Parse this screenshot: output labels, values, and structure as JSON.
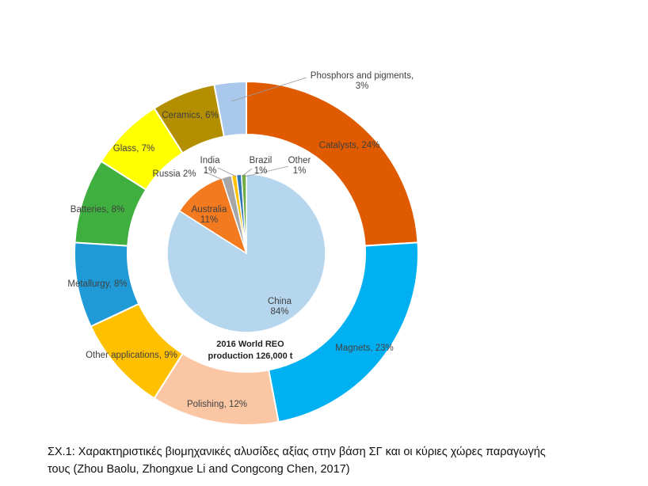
{
  "chart_data": [
    {
      "type": "pie",
      "variant": "donut",
      "ring": "outer",
      "slices": [
        {
          "label": "Catalysts, 24%",
          "value": 24,
          "color": "#E05A00"
        },
        {
          "label": "Magnets, 23%",
          "value": 23,
          "color": "#00B0F0"
        },
        {
          "label": "Polishing, 12%",
          "value": 12,
          "color": "#FAC6A4"
        },
        {
          "label": "Other applications, 9%",
          "value": 9,
          "color": "#FFC000"
        },
        {
          "label": "Metallurgy, 8%",
          "value": 8,
          "color": "#1F9AD6"
        },
        {
          "label": "Batteries, 8%",
          "value": 8,
          "color": "#3FAF3F"
        },
        {
          "label": "Glass, 7%",
          "value": 7,
          "color": "#FFFF00"
        },
        {
          "label": "Ceramics, 6%",
          "value": 6,
          "color": "#B38F00"
        },
        {
          "label": "Phosphors and pigments, 3%",
          "value": 3,
          "color": "#A9C8EC",
          "label_lines": [
            "Phosphors and pigments,",
            "3%"
          ]
        }
      ]
    },
    {
      "type": "pie",
      "ring": "inner",
      "center_text": [
        "2016 World REO",
        "production 126,000 t"
      ],
      "slices": [
        {
          "label": "China 84%",
          "value": 84,
          "color": "#B6D6EE",
          "label_lines": [
            "China",
            "84%"
          ]
        },
        {
          "label": "Australia 11%",
          "value": 11,
          "color": "#F47A20",
          "label_lines": [
            "Australia",
            "11%"
          ]
        },
        {
          "label": "Russia 2%",
          "value": 2,
          "color": "#A6A6A6",
          "label_lines": [
            "Russia 2%"
          ]
        },
        {
          "label": "India 1%",
          "value": 1,
          "color": "#FFC000",
          "label_lines": [
            "India",
            "1%"
          ]
        },
        {
          "label": "Brazil 1%",
          "value": 1,
          "color": "#2E75B6",
          "label_lines": [
            "Brazil",
            "1%"
          ]
        },
        {
          "label": "Other 1%",
          "value": 1,
          "color": "#70AD47",
          "label_lines": [
            "Other",
            "1%"
          ]
        }
      ]
    }
  ],
  "caption": {
    "line1": "ΣΧ.1: Χαρακτηριστικές βιομηχανικές αλυσίδες αξίας στην βάση ΣΓ και οι κύριες χώρες παραγωγής",
    "line2": "τους (Zhou Baolu, Zhongxue Li and Congcong Chen, 2017)"
  }
}
